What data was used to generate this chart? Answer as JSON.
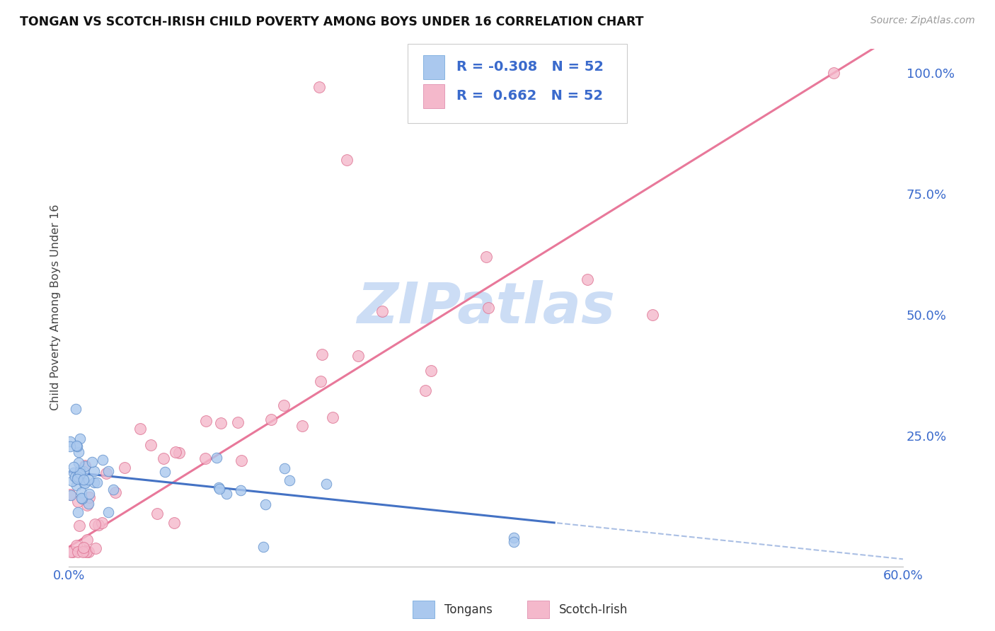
{
  "title": "TONGAN VS SCOTCH-IRISH CHILD POVERTY AMONG BOYS UNDER 16 CORRELATION CHART",
  "source": "Source: ZipAtlas.com",
  "ylabel": "Child Poverty Among Boys Under 16",
  "xlim": [
    0.0,
    0.6
  ],
  "ylim": [
    -0.02,
    1.05
  ],
  "yticks_right": [
    0.0,
    0.25,
    0.5,
    0.75,
    1.0
  ],
  "yticklabels_right": [
    "",
    "25.0%",
    "50.0%",
    "75.0%",
    "100.0%"
  ],
  "R_tongan": -0.308,
  "N_tongan": 52,
  "R_scotch": 0.662,
  "N_scotch": 52,
  "tongan_color": "#aac8ee",
  "scotch_color": "#f4b8cb",
  "tongan_line_color": "#4472c4",
  "scotch_line_color": "#e8789a",
  "background_color": "#ffffff",
  "grid_color": "#d8d8d8",
  "watermark": "ZIPatlas",
  "watermark_color": "#ccddf5"
}
